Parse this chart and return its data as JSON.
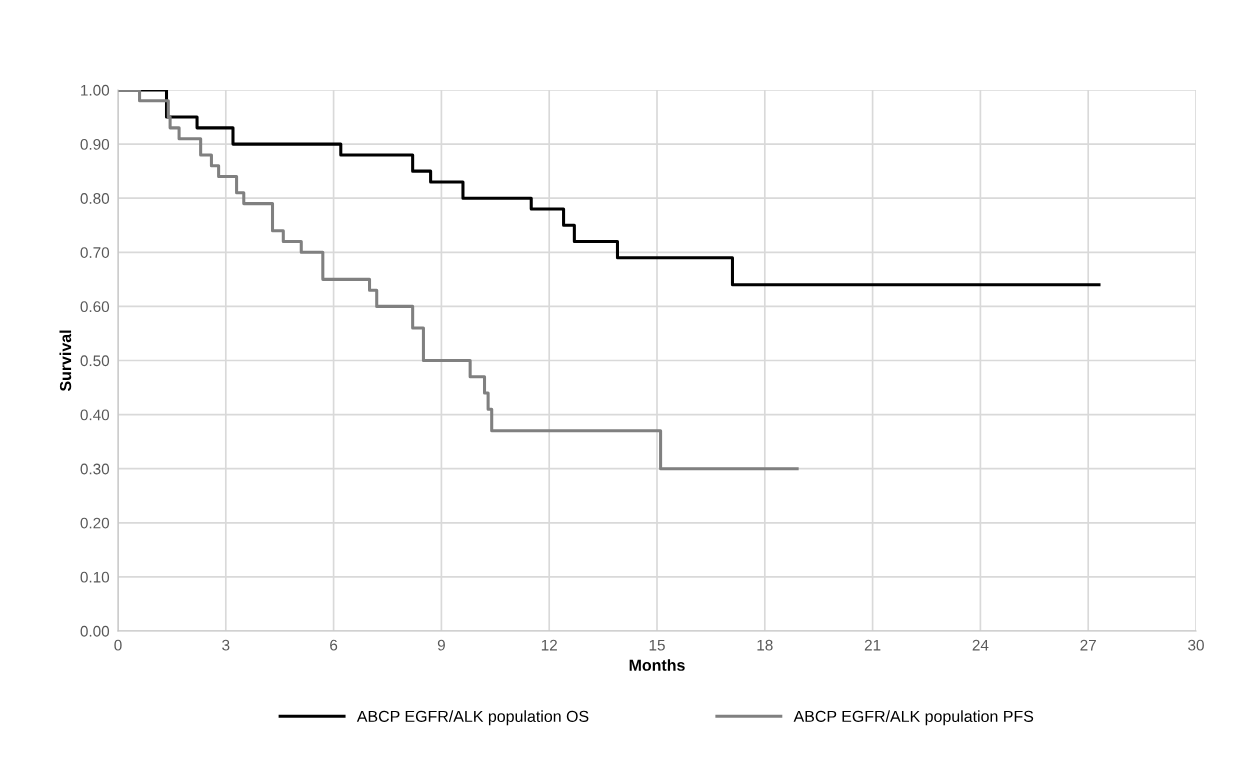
{
  "chart_data": {
    "type": "step",
    "xlabel": "Months",
    "ylabel": "Survival",
    "xlim": [
      0,
      30
    ],
    "xticks": [
      0,
      3,
      6,
      9,
      12,
      15,
      18,
      21,
      24,
      27,
      30
    ],
    "ylim": [
      0,
      1
    ],
    "yticks": [
      {
        "value": 0,
        "label": "0.00"
      },
      {
        "value": 0.1,
        "label": "0.10"
      },
      {
        "value": 0.2,
        "label": "0.20"
      },
      {
        "value": 0.3,
        "label": "0.30"
      },
      {
        "value": 0.4,
        "label": "0.40"
      },
      {
        "value": 0.5,
        "label": "0.50"
      },
      {
        "value": 0.6,
        "label": "0.60"
      },
      {
        "value": 0.7,
        "label": "0.70"
      },
      {
        "value": 0.8,
        "label": "0.80"
      },
      {
        "value": 0.9,
        "label": "0.90"
      },
      {
        "value": 1,
        "label": "1.00"
      }
    ],
    "grid": true,
    "legend": "bottom",
    "line_style": "solid",
    "marker": "none",
    "series": [
      {
        "name": "ABCP EGFR/ALK population OS",
        "color": "#000000",
        "x": [
          0,
          1.35,
          2.2,
          3.2,
          6.2,
          8.2,
          8.7,
          9.6,
          11.5,
          12.4,
          12.7,
          13.9,
          17.1,
          27.3
        ],
        "values": [
          1.0,
          0.95,
          0.93,
          0.9,
          0.88,
          0.85,
          0.83,
          0.8,
          0.78,
          0.75,
          0.72,
          0.69,
          0.64,
          0.64
        ]
      },
      {
        "name": "ABCP EGFR/ALK population PFS",
        "color": "#808080",
        "x": [
          0,
          0.6,
          1.4,
          1.45,
          1.7,
          2.3,
          2.6,
          2.8,
          3.3,
          3.5,
          4.3,
          4.6,
          5.1,
          5.7,
          7.0,
          7.2,
          8.2,
          8.5,
          9.8,
          10.2,
          10.3,
          10.4,
          15.1,
          18.9
        ],
        "values": [
          1.0,
          0.98,
          0.95,
          0.93,
          0.91,
          0.88,
          0.86,
          0.84,
          0.81,
          0.79,
          0.74,
          0.72,
          0.7,
          0.65,
          0.63,
          0.6,
          0.56,
          0.5,
          0.47,
          0.44,
          0.41,
          0.37,
          0.3,
          0.3
        ]
      }
    ]
  }
}
